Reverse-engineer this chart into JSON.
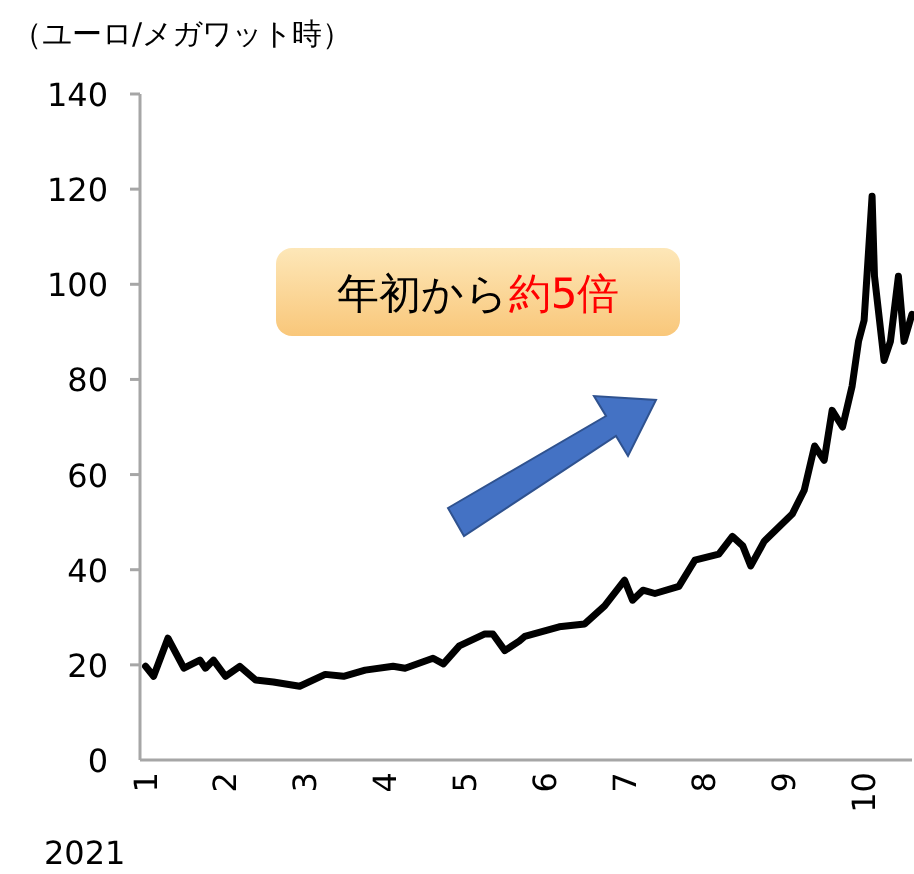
{
  "chart_data": {
    "type": "line",
    "ylabel": "（ユーロ/メガワット時）",
    "xlabel": "2021",
    "annotations": [
      "年初から約5倍"
    ],
    "x": [
      1.0,
      1.1,
      1.28,
      1.48,
      1.68,
      1.75,
      1.85,
      2.0,
      2.18,
      2.38,
      2.6,
      2.93,
      3.25,
      3.48,
      3.75,
      4.1,
      4.25,
      4.6,
      4.73,
      4.93,
      5.25,
      5.35,
      5.5,
      5.68,
      5.75,
      6.18,
      6.5,
      6.75,
      7.0,
      7.1,
      7.23,
      7.38,
      7.68,
      7.88,
      8.18,
      8.35,
      8.48,
      8.58,
      8.75,
      9.1,
      9.25,
      9.38,
      9.5,
      9.6,
      9.73,
      9.85,
      9.93,
      10.0,
      10.1,
      10.13,
      10.25,
      10.33,
      10.43,
      10.5,
      10.6
    ],
    "series": [
      {
        "color": "#000000",
        "values": [
          19.7,
          17.6,
          25.6,
          19.3,
          21,
          19.3,
          21,
          17.6,
          19.7,
          16.8,
          16.4,
          15.5,
          18,
          17.6,
          18.9,
          19.7,
          19.3,
          21.4,
          20.2,
          24,
          26.5,
          26.5,
          23,
          25,
          26,
          28,
          28.6,
          32.4,
          37.8,
          33.6,
          35.7,
          35,
          36.5,
          42,
          43.3,
          47,
          45,
          40.8,
          46,
          51.7,
          56.7,
          66,
          63,
          73.5,
          70,
          78.6,
          88,
          92.4,
          118.5,
          101.7,
          84,
          88,
          101.7,
          88,
          93.7
        ]
      }
    ],
    "xlim": [
      0.93,
      10.6
    ],
    "xticks": [
      1,
      2,
      3,
      4,
      5,
      6,
      7,
      8,
      9,
      10
    ],
    "ylim": [
      0,
      140
    ],
    "yticks": [
      0,
      20,
      40,
      60,
      80,
      100,
      120,
      140
    ],
    "grid": false,
    "marker": "none",
    "line_style": "solid"
  }
}
